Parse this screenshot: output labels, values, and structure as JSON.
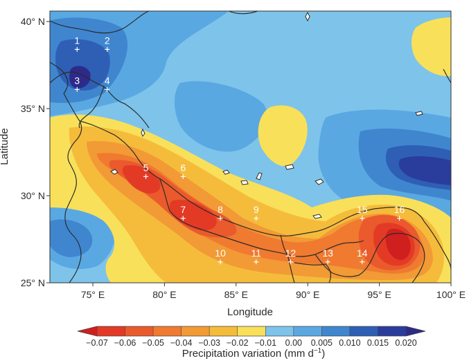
{
  "map": {
    "x_axis": {
      "label": "Longitude",
      "ticks": [
        "75° E",
        "80° E",
        "85° E",
        "90° E",
        "95° E",
        "100° E"
      ],
      "tick_values": [
        75,
        80,
        85,
        90,
        95,
        100
      ],
      "range": [
        72,
        100
      ]
    },
    "y_axis": {
      "label": "Latitude",
      "ticks": [
        "25° N",
        "30° N",
        "35° N",
        "40° N"
      ],
      "tick_values": [
        25,
        30,
        35,
        40
      ],
      "range": [
        25,
        40.6
      ]
    },
    "colorbar": {
      "label": "Precipitation variation (mm d",
      "label_sup": "−1",
      "label_end": ")",
      "ticks": [
        "−0.07",
        "−0.06",
        "−0.05",
        "−0.04",
        "−0.03",
        "−0.02",
        "−0.01",
        "0.00",
        "0.005",
        "0.010",
        "0.015",
        "0.020"
      ],
      "colors": [
        "#d01f1f",
        "#e33a26",
        "#ea5a2c",
        "#ef7a30",
        "#f29a35",
        "#f5bc3b",
        "#f9e05a",
        "#7ec3ea",
        "#5aa8e2",
        "#3f86cf",
        "#2e5fb5",
        "#2a3d9c",
        "#2d2a8a"
      ]
    },
    "stations": [
      {
        "id": "1",
        "lon": 73.9,
        "lat": 38.4
      },
      {
        "id": "2",
        "lon": 76.0,
        "lat": 38.4
      },
      {
        "id": "3",
        "lon": 73.9,
        "lat": 36.1
      },
      {
        "id": "4",
        "lon": 76.0,
        "lat": 36.1
      },
      {
        "id": "5",
        "lon": 78.7,
        "lat": 31.1
      },
      {
        "id": "6",
        "lon": 81.3,
        "lat": 31.1
      },
      {
        "id": "7",
        "lon": 81.3,
        "lat": 28.7
      },
      {
        "id": "8",
        "lon": 83.9,
        "lat": 28.7
      },
      {
        "id": "9",
        "lon": 86.4,
        "lat": 28.7
      },
      {
        "id": "10",
        "lon": 83.9,
        "lat": 26.2
      },
      {
        "id": "11",
        "lon": 86.4,
        "lat": 26.2
      },
      {
        "id": "12",
        "lon": 88.8,
        "lat": 26.2
      },
      {
        "id": "13",
        "lon": 91.4,
        "lat": 26.2
      },
      {
        "id": "14",
        "lon": 93.8,
        "lat": 26.2
      },
      {
        "id": "15",
        "lon": 93.8,
        "lat": 28.7
      },
      {
        "id": "16",
        "lon": 96.4,
        "lat": 28.7
      }
    ]
  }
}
